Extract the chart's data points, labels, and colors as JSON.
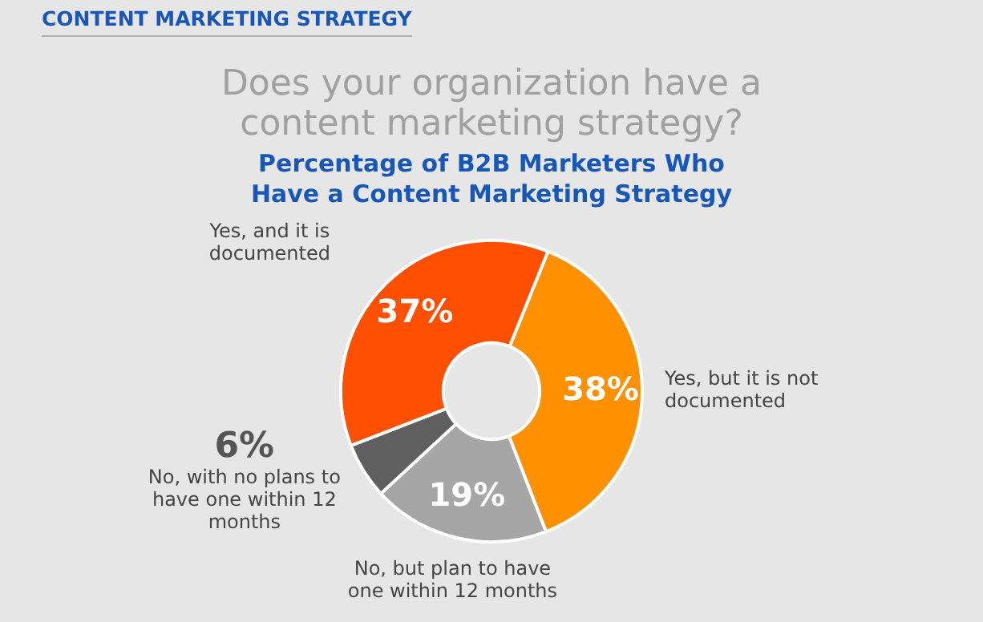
{
  "chart_data": {
    "type": "donut",
    "title": "Does your organization have a content marketing strategy?",
    "subtitle": "Percentage of B2B Marketers Who Have a Content Marketing Strategy",
    "annotations": [
      "CONTENT MARKETING STRATEGY"
    ],
    "categories": [
      "Yes, but it is not documented",
      "No, but plan to have one within 12 months",
      "No, with no plans to have one within 12 months",
      "Yes, and it is documented"
    ],
    "values": [
      38,
      19,
      6,
      37
    ],
    "colors": [
      "#ff9000",
      "#a6a6a6",
      "#5f5f60",
      "#ff4f00"
    ],
    "value_labels": [
      "38%",
      "19%",
      "6%",
      "37%"
    ],
    "legend": false
  }
}
